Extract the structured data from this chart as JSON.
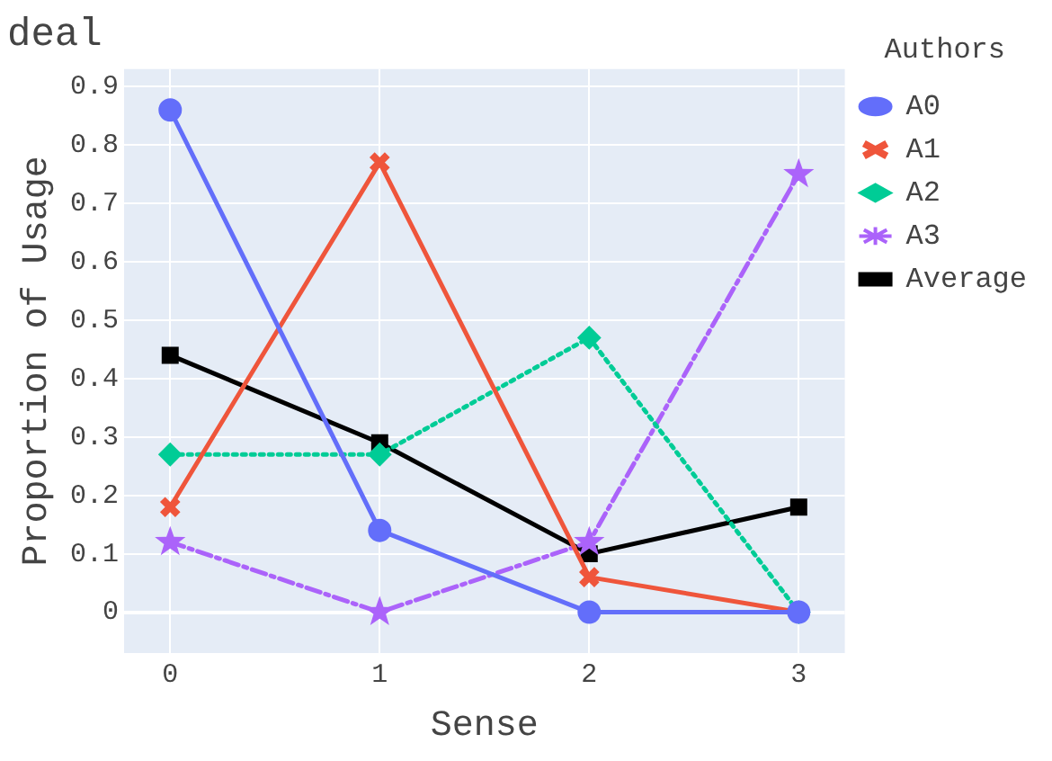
{
  "chart_data": {
    "type": "line",
    "title": "deal",
    "xlabel": "Sense",
    "ylabel": "Proportion of Usage",
    "legend_title": "Authors",
    "legend": "top right",
    "grid": true,
    "x": [
      0,
      1,
      2,
      3
    ],
    "xlim": [
      -0.22,
      3.22
    ],
    "xticks": [
      0,
      1,
      2,
      3
    ],
    "ylim": [
      -0.07,
      0.93
    ],
    "yticks": [
      0,
      0.1,
      0.2,
      0.3,
      0.4,
      0.5,
      0.6,
      0.7,
      0.8,
      0.9
    ],
    "series": [
      {
        "name": "A0",
        "color": "#636efa",
        "values": [
          0.86,
          0.14,
          0,
          0
        ],
        "marker": "circle",
        "line_style": "solid"
      },
      {
        "name": "A1",
        "color": "#ef553b",
        "values": [
          0.18,
          0.77,
          0.06,
          0
        ],
        "marker": "cross",
        "line_style": "solid"
      },
      {
        "name": "A2",
        "color": "#00cc96",
        "values": [
          0.27,
          0.27,
          0.47,
          0
        ],
        "marker": "diamond",
        "line_style": "dotted"
      },
      {
        "name": "A3",
        "color": "#ab63fa",
        "values": [
          0.12,
          0,
          0.12,
          0.75
        ],
        "marker": "star",
        "line_style": "dashdot"
      },
      {
        "name": "Average",
        "color": "#000000",
        "values": [
          0.44,
          0.29,
          0.1,
          0.18
        ],
        "marker": "square",
        "line_style": "solid"
      }
    ]
  }
}
